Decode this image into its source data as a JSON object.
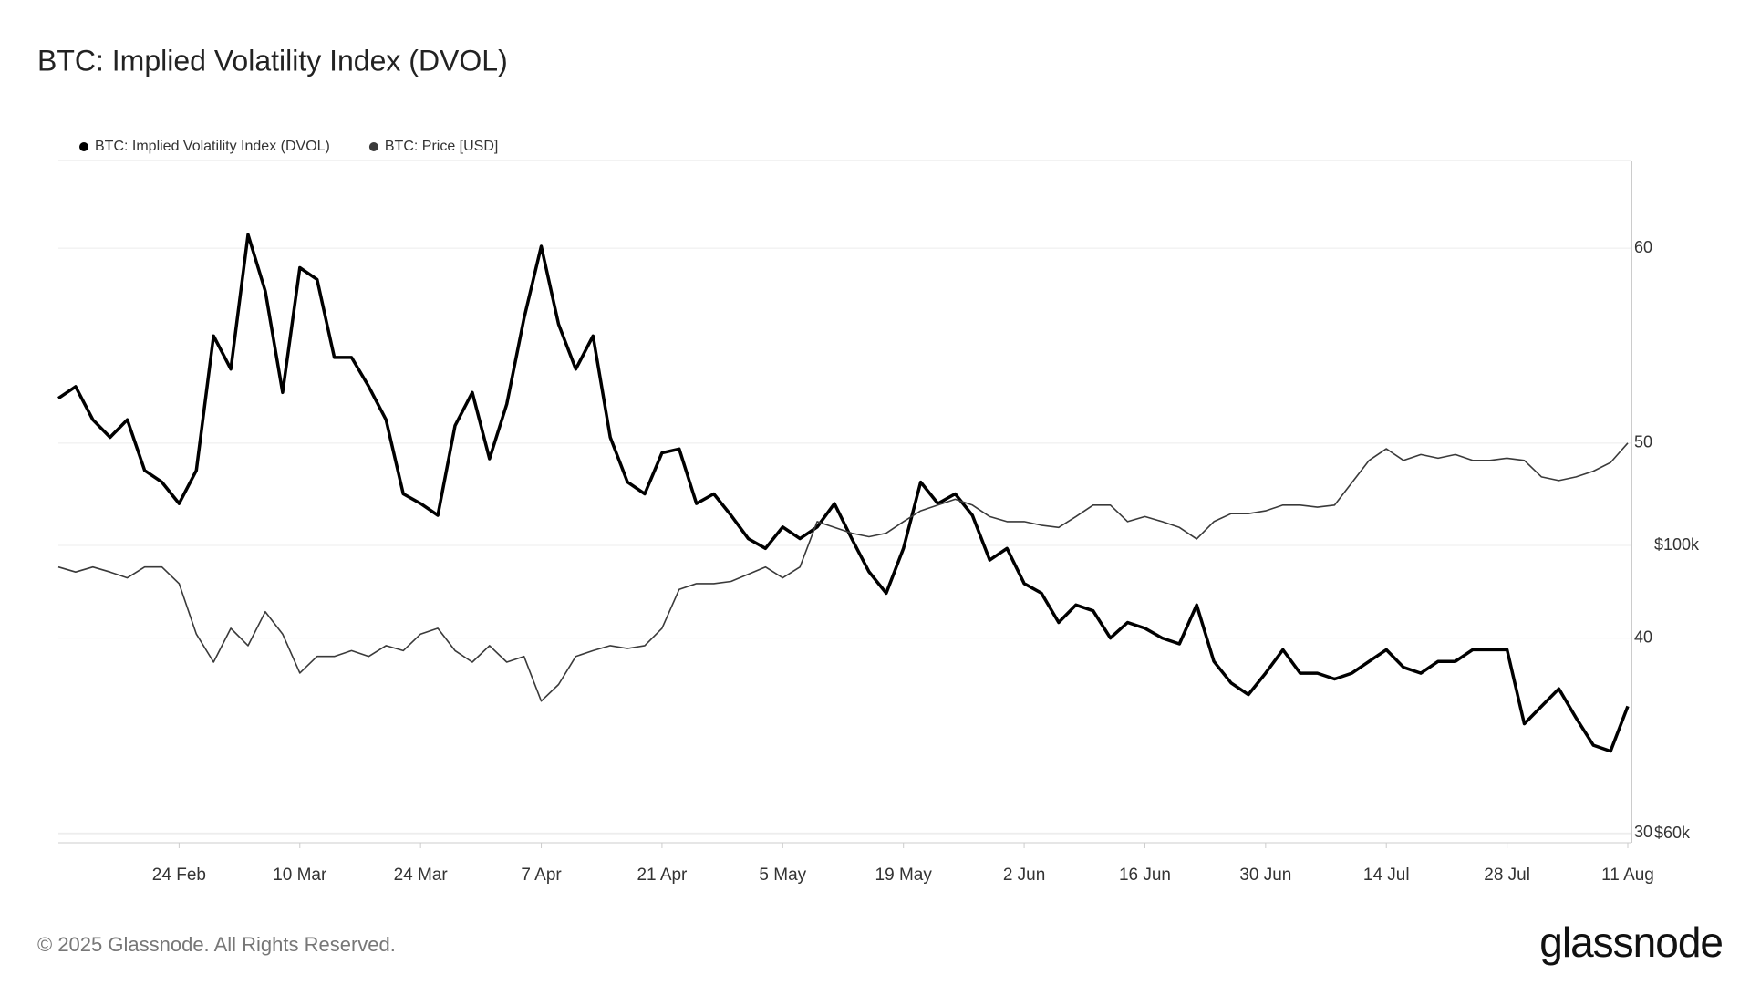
{
  "chart_data": {
    "type": "line",
    "title": "BTC: Implied Volatility Index (DVOL)",
    "categories": [
      null,
      null,
      null,
      null,
      null,
      null,
      null,
      "24 Feb",
      null,
      null,
      null,
      null,
      null,
      null,
      "10 Mar",
      null,
      null,
      null,
      null,
      null,
      null,
      "24 Mar",
      null,
      null,
      null,
      null,
      null,
      null,
      "7 Apr",
      null,
      null,
      null,
      null,
      null,
      null,
      "21 Apr",
      null,
      null,
      null,
      null,
      null,
      null,
      "5 May",
      null,
      null,
      null,
      null,
      null,
      null,
      "19 May",
      null,
      null,
      null,
      null,
      null,
      null,
      "2 Jun",
      null,
      null,
      null,
      null,
      null,
      null,
      "16 Jun",
      null,
      null,
      null,
      null,
      null,
      null,
      "30 Jun",
      null,
      null,
      null,
      null,
      null,
      null,
      "14 Jul",
      null,
      null,
      null,
      null,
      null,
      null,
      "28 Jul",
      null,
      null,
      null,
      null,
      null,
      null,
      "11 Aug"
    ],
    "series": [
      {
        "name": "BTC: Implied Volatility Index (DVOL)",
        "color": "#000000",
        "values": [
          52.3,
          52.9,
          51.2,
          50.3,
          51.2,
          48.6,
          48.0,
          46.9,
          48.6,
          55.5,
          53.8,
          60.7,
          57.8,
          52.6,
          59.0,
          58.4,
          54.4,
          54.4,
          52.9,
          51.2,
          47.4,
          46.9,
          46.3,
          50.9,
          52.6,
          49.2,
          52.0,
          56.4,
          60.1,
          56.1,
          53.8,
          55.5,
          50.3,
          48.0,
          47.4,
          49.5,
          49.7,
          46.9,
          47.4,
          46.3,
          45.1,
          44.6,
          45.7,
          45.1,
          45.7,
          46.9,
          45.1,
          43.4,
          42.3,
          44.6,
          48.0,
          46.9,
          47.4,
          46.3,
          44.0,
          44.6,
          42.8,
          42.3,
          40.8,
          41.7,
          41.4,
          40.0,
          40.8,
          40.5,
          40.0,
          39.7,
          41.7,
          38.8,
          37.7,
          37.1,
          38.2,
          39.4,
          38.2,
          38.2,
          37.9,
          38.2,
          38.8,
          39.4,
          38.5,
          38.2,
          38.8,
          38.8,
          39.4,
          39.4,
          39.4,
          35.6,
          36.5,
          37.4,
          35.9,
          34.5,
          34.2,
          36.5
        ]
      },
      {
        "name": "BTC: Price [USD]",
        "color": "#3a3a3a",
        "axis": "y2",
        "values": [
          97000,
          96300,
          97000,
          96300,
          95500,
          97000,
          97000,
          94700,
          87700,
          83800,
          88500,
          86100,
          90800,
          87700,
          82300,
          84600,
          84600,
          85400,
          84600,
          86100,
          85400,
          87700,
          88500,
          85400,
          83800,
          86100,
          83800,
          84600,
          78400,
          80700,
          84600,
          85400,
          86100,
          85700,
          86100,
          88500,
          93900,
          94700,
          94700,
          95000,
          96000,
          97000,
          95500,
          97000,
          103300,
          102500,
          101700,
          101200,
          101700,
          103300,
          104800,
          105600,
          106400,
          105600,
          104000,
          103300,
          103300,
          102800,
          102500,
          104000,
          105600,
          105600,
          103300,
          104000,
          103300,
          102500,
          100900,
          103300,
          104400,
          104400,
          104800,
          105600,
          105600,
          105300,
          105600,
          108700,
          111800,
          113400,
          111800,
          112600,
          112100,
          112600,
          111800,
          111800,
          112100,
          111800,
          109500,
          109000,
          109500,
          110300,
          111500,
          114200
        ]
      }
    ],
    "ylim": [
      29.5,
      64.5
    ],
    "yticks": [
      30,
      40,
      50,
      60
    ],
    "y2lim": [
      58750,
      153400
    ],
    "y2ticks": [
      {
        "value": 60000,
        "label": "$60k"
      },
      {
        "value": 100000,
        "label": "$100k"
      }
    ],
    "grid": true,
    "legend": "top-left"
  },
  "footer": {
    "copyright": "© 2025 Glassnode. All Rights Reserved.",
    "logo": "glassnode"
  }
}
